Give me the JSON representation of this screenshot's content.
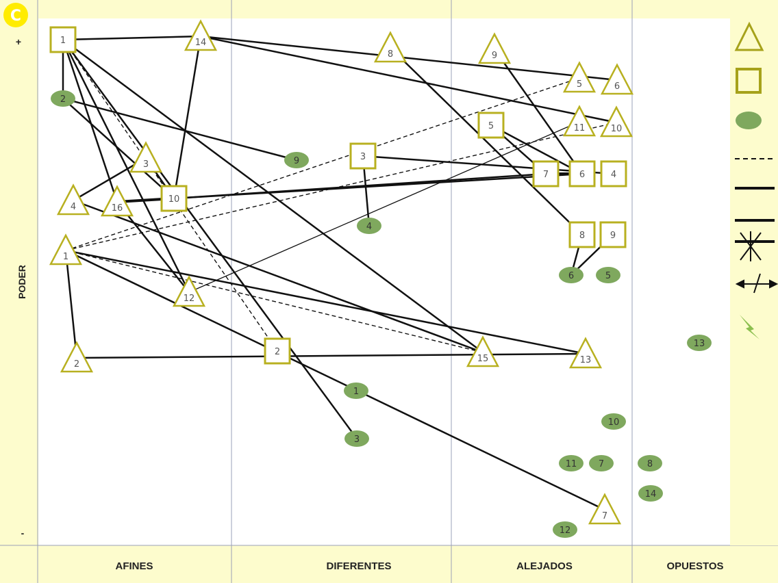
{
  "header": {
    "logo_letter": "C"
  },
  "axis": {
    "y_label": "PODER",
    "y_top": "+",
    "y_bottom": "-"
  },
  "columns": [
    "AFINES",
    "DIFERENTES",
    "ALEJADOS",
    "OPUESTOS"
  ],
  "colors": {
    "background": "#fdfccd",
    "plot": "#ffffff",
    "shape_stroke": "#b8b020",
    "shape_fill": "#ffffff",
    "ellipse_fill": "#7fa85e",
    "line": "#111111",
    "legend_icon": "#a6a21a",
    "lightning": "#8cbf4f"
  },
  "nodes": [
    {
      "id": "t14",
      "shape": "triangle",
      "label": "14"
    },
    {
      "id": "t8",
      "shape": "triangle",
      "label": "8"
    },
    {
      "id": "t9",
      "shape": "triangle",
      "label": "9"
    },
    {
      "id": "t5",
      "shape": "triangle",
      "label": "5"
    },
    {
      "id": "t6",
      "shape": "triangle",
      "label": "6"
    },
    {
      "id": "t11",
      "shape": "triangle",
      "label": "11"
    },
    {
      "id": "t10",
      "shape": "triangle",
      "label": "10"
    },
    {
      "id": "t3",
      "shape": "triangle",
      "label": "3"
    },
    {
      "id": "t4",
      "shape": "triangle",
      "label": "4"
    },
    {
      "id": "t16",
      "shape": "triangle",
      "label": "16"
    },
    {
      "id": "t1",
      "shape": "triangle",
      "label": "1"
    },
    {
      "id": "t12",
      "shape": "triangle",
      "label": "12"
    },
    {
      "id": "t2",
      "shape": "triangle",
      "label": "2"
    },
    {
      "id": "t15",
      "shape": "triangle",
      "label": "15"
    },
    {
      "id": "t13",
      "shape": "triangle",
      "label": "13"
    },
    {
      "id": "t7",
      "shape": "triangle",
      "label": "7"
    },
    {
      "id": "s1",
      "shape": "square",
      "label": "1"
    },
    {
      "id": "s5",
      "shape": "square",
      "label": "5"
    },
    {
      "id": "s3",
      "shape": "square",
      "label": "3"
    },
    {
      "id": "s7",
      "shape": "square",
      "label": "7"
    },
    {
      "id": "s6",
      "shape": "square",
      "label": "6"
    },
    {
      "id": "s4",
      "shape": "square",
      "label": "4"
    },
    {
      "id": "s10",
      "shape": "square",
      "label": "10"
    },
    {
      "id": "s8",
      "shape": "square",
      "label": "8"
    },
    {
      "id": "s9",
      "shape": "square",
      "label": "9"
    },
    {
      "id": "s2",
      "shape": "square",
      "label": "2"
    },
    {
      "id": "e2",
      "shape": "ellipse",
      "label": "2"
    },
    {
      "id": "e9",
      "shape": "ellipse",
      "label": "9"
    },
    {
      "id": "e4",
      "shape": "ellipse",
      "label": "4"
    },
    {
      "id": "e6",
      "shape": "ellipse",
      "label": "6"
    },
    {
      "id": "e5",
      "shape": "ellipse",
      "label": "5"
    },
    {
      "id": "e13",
      "shape": "ellipse",
      "label": "13"
    },
    {
      "id": "e1",
      "shape": "ellipse",
      "label": "1"
    },
    {
      "id": "e10",
      "shape": "ellipse",
      "label": "10"
    },
    {
      "id": "e3",
      "shape": "ellipse",
      "label": "3"
    },
    {
      "id": "e11",
      "shape": "ellipse",
      "label": "11"
    },
    {
      "id": "e7",
      "shape": "ellipse",
      "label": "7"
    },
    {
      "id": "e8",
      "shape": "ellipse",
      "label": "8"
    },
    {
      "id": "e14",
      "shape": "ellipse",
      "label": "14"
    },
    {
      "id": "e12",
      "shape": "ellipse",
      "label": "12"
    }
  ],
  "edges": [
    {
      "from": "s1",
      "to": "t14",
      "style": "solid"
    },
    {
      "from": "s1",
      "to": "e2",
      "style": "solid"
    },
    {
      "from": "s1",
      "to": "t16",
      "style": "solid"
    },
    {
      "from": "s1",
      "to": "t12",
      "style": "solid"
    },
    {
      "from": "s1",
      "to": "t15",
      "style": "solid"
    },
    {
      "from": "s1",
      "to": "e3",
      "style": "solid"
    },
    {
      "from": "s1",
      "to": "s2",
      "style": "dashed"
    },
    {
      "from": "t14",
      "to": "t6",
      "style": "solid"
    },
    {
      "from": "t14",
      "to": "t10",
      "style": "solid"
    },
    {
      "from": "t14",
      "to": "s10",
      "style": "solid"
    },
    {
      "from": "t8",
      "to": "s8",
      "style": "solid"
    },
    {
      "from": "t9",
      "to": "s6",
      "style": "solid"
    },
    {
      "from": "e2",
      "to": "e9",
      "style": "solid"
    },
    {
      "from": "e2",
      "to": "s10",
      "style": "solid"
    },
    {
      "from": "s5",
      "to": "s7",
      "style": "solid"
    },
    {
      "from": "s5",
      "to": "s6",
      "style": "solid"
    },
    {
      "from": "s7",
      "to": "s6",
      "style": "thick"
    },
    {
      "from": "s3",
      "to": "s4",
      "style": "solid"
    },
    {
      "from": "s3",
      "to": "e4",
      "style": "solid"
    },
    {
      "from": "s10",
      "to": "s7",
      "style": "solid"
    },
    {
      "from": "s10",
      "to": "s6",
      "style": "solid"
    },
    {
      "from": "t16",
      "to": "s10",
      "style": "thick"
    },
    {
      "from": "t16",
      "to": "t12",
      "style": "solid"
    },
    {
      "from": "t4",
      "to": "t3",
      "style": "solid"
    },
    {
      "from": "t3",
      "to": "s10",
      "style": "solid"
    },
    {
      "from": "t4",
      "to": "t15",
      "style": "solid"
    },
    {
      "from": "t1",
      "to": "t5",
      "style": "dashed"
    },
    {
      "from": "t1",
      "to": "t10",
      "style": "dashed"
    },
    {
      "from": "t1",
      "to": "t2",
      "style": "solid"
    },
    {
      "from": "t1",
      "to": "t13",
      "style": "solid"
    },
    {
      "from": "t1",
      "to": "t15",
      "style": "dashed"
    },
    {
      "from": "t1",
      "to": "t7",
      "style": "solid"
    },
    {
      "from": "t12",
      "to": "t11",
      "style": "thin"
    },
    {
      "from": "t2",
      "to": "t13",
      "style": "solid"
    },
    {
      "from": "s8",
      "to": "e6",
      "style": "solid"
    },
    {
      "from": "s9",
      "to": "e6",
      "style": "solid"
    }
  ],
  "legend": [
    {
      "name": "legend-triangle-icon"
    },
    {
      "name": "legend-square-icon"
    },
    {
      "name": "legend-ellipse-icon"
    },
    {
      "name": "legend-dashed-line-icon"
    },
    {
      "name": "legend-solid-line-icon"
    },
    {
      "name": "legend-double-line-icon"
    },
    {
      "name": "legend-broken-line-icon"
    },
    {
      "name": "legend-arrow-icon"
    },
    {
      "name": "legend-lightning-icon"
    }
  ]
}
